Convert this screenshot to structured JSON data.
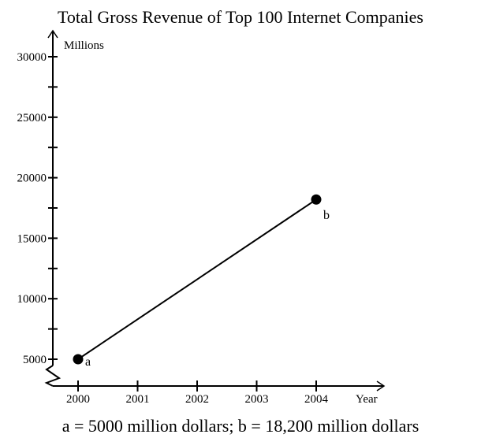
{
  "chart_data": {
    "type": "line",
    "title": "Total Gross Revenue of Top 100 Internet Companies",
    "xlabel": "Year",
    "ylabel": "Millions",
    "x_ticks": [
      "2000",
      "2001",
      "2002",
      "2003",
      "2004"
    ],
    "y_ticks": [
      "5000",
      "10000",
      "15000",
      "20000",
      "25000",
      "30000"
    ],
    "xlim": [
      2000,
      2004
    ],
    "ylim": [
      5000,
      30000
    ],
    "y_axis_break": true,
    "grid": false,
    "series": [
      {
        "points": [
          {
            "label": "a",
            "x": 2000,
            "y": 5000
          },
          {
            "label": "b",
            "x": 2004,
            "y": 18200
          }
        ]
      }
    ],
    "caption": "a = 5000 million dollars; b = 18,200 million dollars"
  },
  "colors": {
    "ink": "#000000",
    "background": "#ffffff"
  }
}
